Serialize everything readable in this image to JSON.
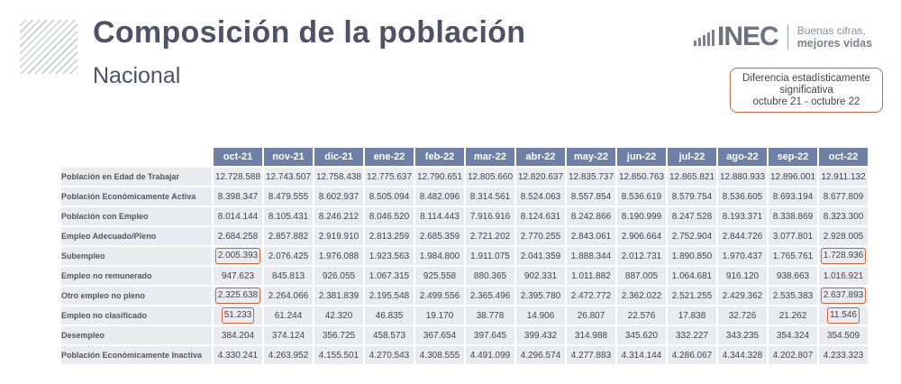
{
  "header": {
    "title": "Composición de la población",
    "subtitle": "Nacional"
  },
  "logo": {
    "wordmark": "INEC",
    "tagline_1": "Buenas cifras,",
    "tagline_2": "mejores vidas"
  },
  "legend": {
    "line1": "Diferencia estadísticamente",
    "line2": "significativa",
    "line3": "octubre 21 - octubre 22",
    "border_color": "#c06a3e"
  },
  "table": {
    "header_color": "#6f7fa6",
    "columns": [
      "oct-21",
      "nov-21",
      "dic-21",
      "ene-22",
      "feb-22",
      "mar-22",
      "abr-22",
      "may-22",
      "jun-22",
      "jul-22",
      "ago-22",
      "sep-22",
      "oct-22"
    ],
    "rows": [
      {
        "label": "Población en Edad de Trabajar",
        "level": "lvl0",
        "values": [
          "12.728.588",
          "12.743.507",
          "12.758.438",
          "12.775.637",
          "12.790.651",
          "12.805.660",
          "12.820.637",
          "12.835.737",
          "12.850.763",
          "12.865.821",
          "12.880.933",
          "12.896.001",
          "12.911.132"
        ],
        "highlight": []
      },
      {
        "label": "Población Económicamente Activa",
        "level": "lvl1",
        "values": [
          "8.398.347",
          "8.479.555",
          "8.602.937",
          "8.505.094",
          "8.482.096",
          "8.314.561",
          "8.524.063",
          "8.557.854",
          "8.536.619",
          "8.579.754",
          "8.536.605",
          "8.693.194",
          "8.677.809"
        ],
        "highlight": []
      },
      {
        "label": "Población con Empleo",
        "level": "lvl2",
        "values": [
          "8.014.144",
          "8.105.431",
          "8.246.212",
          "8.046.520",
          "8.114.443",
          "7.916.916",
          "8.124.631",
          "8.242.866",
          "8.190.999",
          "8.247.528",
          "8.193.371",
          "8.338.869",
          "8.323.300"
        ],
        "highlight": []
      },
      {
        "label": "Empleo Adecuado/Pleno",
        "level": "lvl3",
        "values": [
          "2.684.258",
          "2.857.882",
          "2.919.910",
          "2.813.259",
          "2.685.359",
          "2.721.202",
          "2.770.255",
          "2.843.061",
          "2.906.664",
          "2.752.904",
          "2.844.726",
          "3.077.801",
          "2.928.005"
        ],
        "highlight": []
      },
      {
        "label": "Subempleo",
        "level": "lvl3",
        "values": [
          "2.005.393",
          "2.076.425",
          "1.976.088",
          "1.923.563",
          "1.984.800",
          "1.911.075",
          "2.041.359",
          "1.888.344",
          "2.012.731",
          "1.890.850",
          "1.970.437",
          "1.765.761",
          "1.728.936"
        ],
        "highlight": [
          0,
          12
        ]
      },
      {
        "label": "Empleo no remunerado",
        "level": "lvl3",
        "values": [
          "947.623",
          "845.813",
          "926.055",
          "1.067.315",
          "925.558",
          "880.365",
          "902.331",
          "1.011.882",
          "887.005",
          "1.064.681",
          "916.120",
          "938.663",
          "1.016.921"
        ],
        "highlight": []
      },
      {
        "label": "Otro empleo no pleno",
        "level": "lvl3",
        "values": [
          "2.325.638",
          "2.264.066",
          "2.381.839",
          "2.195.548",
          "2.499.556",
          "2.365.496",
          "2.395.780",
          "2.472.772",
          "2.362.022",
          "2.521.255",
          "2.429.362",
          "2.535.383",
          "2.637.893"
        ],
        "highlight": [
          0,
          12
        ]
      },
      {
        "label": "Empleo no clasificado",
        "level": "lvl3",
        "values": [
          "51.233",
          "61.244",
          "42.320",
          "46.835",
          "19.170",
          "38.778",
          "14.906",
          "26.807",
          "22.576",
          "17.838",
          "32.726",
          "21.262",
          "11.546"
        ],
        "highlight": [
          0,
          12
        ]
      },
      {
        "label": "Desempleo",
        "level": "lvl2b",
        "values": [
          "384.204",
          "374.124",
          "356.725",
          "458.573",
          "367.654",
          "397.645",
          "399.432",
          "314.988",
          "345.620",
          "332.227",
          "343.235",
          "354.324",
          "354.509"
        ],
        "highlight": []
      },
      {
        "label": "Población Económicamente Inactiva",
        "level": "lvl0",
        "values": [
          "4.330.241",
          "4.263.952",
          "4.155.501",
          "4.270.543",
          "4.308.555",
          "4.491.099",
          "4.296.574",
          "4.277.883",
          "4.314.144",
          "4.286.067",
          "4.344.328",
          "4.202.807",
          "4.233.323"
        ],
        "highlight": []
      }
    ]
  }
}
